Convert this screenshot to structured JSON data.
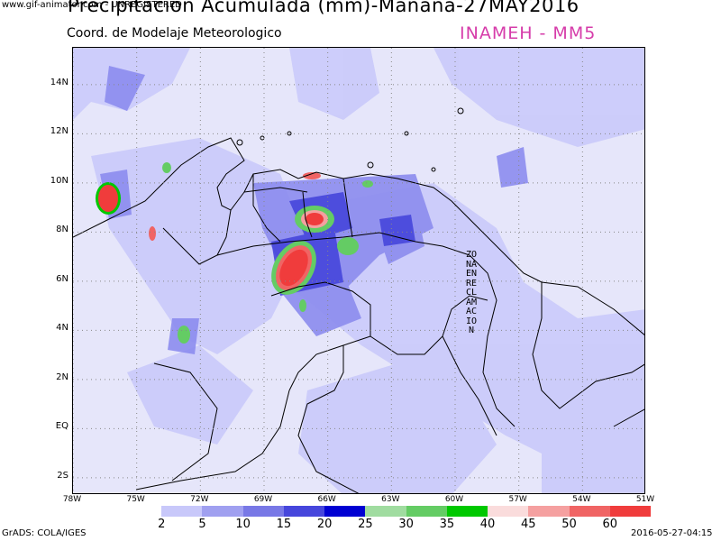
{
  "watermark": "www.gif-animator.com - UNREGISTERED",
  "title": "Precipitacion Acumulada (mm)-Manana-27MAY2016",
  "subtitle": "Coord. de Modelaje Meteorologico",
  "agency": "INAMEH  - MM5",
  "map": {
    "lon_range": [
      -78,
      -51
    ],
    "lat_range": [
      -2.7,
      15.5
    ],
    "lat_ticks": [
      {
        "value": 14,
        "label": "14N"
      },
      {
        "value": 12,
        "label": "12N"
      },
      {
        "value": 10,
        "label": "10N"
      },
      {
        "value": 8,
        "label": "8N"
      },
      {
        "value": 6,
        "label": "6N"
      },
      {
        "value": 4,
        "label": "4N"
      },
      {
        "value": 2,
        "label": "2N"
      },
      {
        "value": 0,
        "label": "EQ"
      },
      {
        "value": -2,
        "label": "2S"
      }
    ],
    "lon_ticks": [
      {
        "value": -78,
        "label": "78W"
      },
      {
        "value": -75,
        "label": "75W"
      },
      {
        "value": -72,
        "label": "72W"
      },
      {
        "value": -69,
        "label": "69W"
      },
      {
        "value": -66,
        "label": "66W"
      },
      {
        "value": -63,
        "label": "63W"
      },
      {
        "value": -60,
        "label": "60W"
      },
      {
        "value": -57,
        "label": "57W"
      },
      {
        "value": -54,
        "label": "54W"
      },
      {
        "value": -51,
        "label": "51W"
      }
    ],
    "zone_label": "ZONA EN RECLAMACION",
    "grid": true
  },
  "legend": {
    "labels": [
      "2",
      "5",
      "10",
      "15",
      "20",
      "25",
      "30",
      "35",
      "40",
      "45",
      "50",
      "60"
    ],
    "colors": [
      "#ffffff",
      "#c8c8fa",
      "#a0a0f0",
      "#7878e6",
      "#4646dc",
      "#0000d2",
      "#a0dca0",
      "#64cc64",
      "#00c800",
      "#fadcdc",
      "#f5a0a0",
      "#f06464",
      "#f03c3c"
    ]
  },
  "footer": {
    "left": "GrADS: COLA/IGES",
    "right": "2016-05-27-04:15"
  }
}
